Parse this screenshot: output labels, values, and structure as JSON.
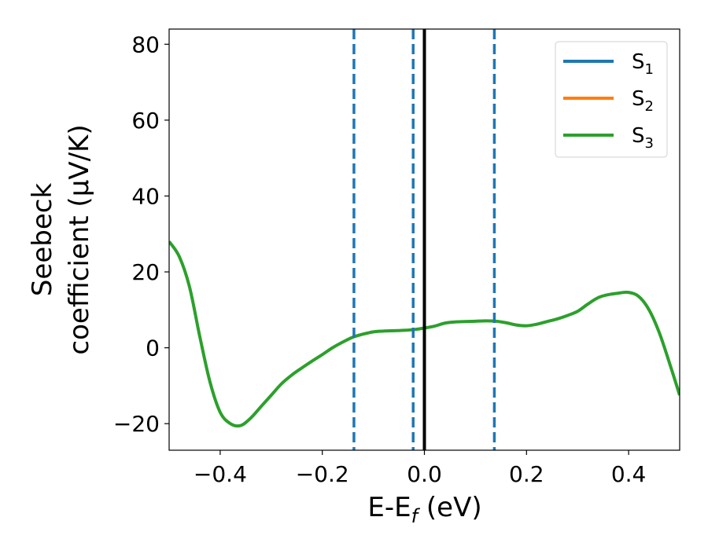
{
  "chart_data": {
    "type": "line",
    "xlabel": "E-E",
    "xlabel_sub": "f",
    "xlabel_unit": " (eV)",
    "ylabel_line1": "Seebeck",
    "ylabel_line2": "coefficient  (μV/K)",
    "xlim": [
      -0.5,
      0.5
    ],
    "ylim": [
      -27,
      84
    ],
    "x_ticks": [
      -0.4,
      -0.2,
      0.0,
      0.2,
      0.4
    ],
    "x_tick_labels": [
      "−0.4",
      "−0.2",
      "0.0",
      "0.2",
      "0.4"
    ],
    "y_ticks": [
      -20,
      0,
      20,
      40,
      60,
      80
    ],
    "y_tick_labels": [
      "−20",
      "0",
      "20",
      "40",
      "60",
      "80"
    ],
    "grid": false,
    "legend_position": "top-right",
    "vertical_lines": [
      {
        "x": -0.138,
        "style": "dashed",
        "color": "#1f77b4"
      },
      {
        "x": -0.022,
        "style": "dashed",
        "color": "#1f77b4"
      },
      {
        "x": 0.0,
        "style": "solid",
        "color": "#000000"
      },
      {
        "x": 0.137,
        "style": "dashed",
        "color": "#1f77b4"
      }
    ],
    "series": [
      {
        "name": "S",
        "sub": "1",
        "color": "#1f77b4"
      },
      {
        "name": "S",
        "sub": "2",
        "color": "#ff7f0e"
      },
      {
        "name": "S",
        "sub": "3",
        "color": "#2ca02c",
        "x": [
          -0.5,
          -0.48,
          -0.46,
          -0.44,
          -0.42,
          -0.4,
          -0.38,
          -0.36,
          -0.34,
          -0.32,
          -0.3,
          -0.28,
          -0.26,
          -0.24,
          -0.22,
          -0.2,
          -0.18,
          -0.16,
          -0.14,
          -0.12,
          -0.1,
          -0.08,
          -0.06,
          -0.04,
          -0.02,
          0.0,
          0.02,
          0.04,
          0.06,
          0.08,
          0.1,
          0.12,
          0.14,
          0.16,
          0.18,
          0.2,
          0.22,
          0.24,
          0.26,
          0.28,
          0.3,
          0.32,
          0.34,
          0.36,
          0.38,
          0.4,
          0.42,
          0.44,
          0.46,
          0.48,
          0.5
        ],
        "y": [
          28,
          24,
          16,
          3,
          -9,
          -17,
          -20,
          -20.5,
          -18.5,
          -15.5,
          -12.5,
          -9.5,
          -7.2,
          -5.3,
          -3.5,
          -1.8,
          0.0,
          1.5,
          2.8,
          3.6,
          4.2,
          4.4,
          4.5,
          4.6,
          4.8,
          5.2,
          5.7,
          6.5,
          6.8,
          6.9,
          7.0,
          7.1,
          7.0,
          6.6,
          6.0,
          5.8,
          6.2,
          6.9,
          7.6,
          8.5,
          9.6,
          11.5,
          13.2,
          14.0,
          14.4,
          14.6,
          13.5,
          10.0,
          4.0,
          -4.0,
          -12.5
        ]
      }
    ]
  }
}
